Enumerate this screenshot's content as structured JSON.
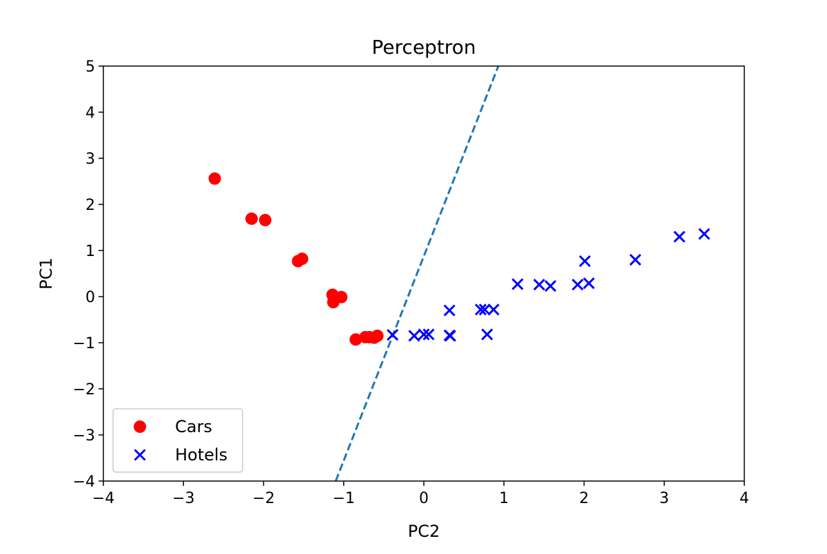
{
  "chart_data": {
    "type": "scatter",
    "title": "Perceptron",
    "xlabel": "PC2",
    "ylabel": "PC1",
    "xlim": [
      -4,
      4
    ],
    "ylim": [
      -4,
      5
    ],
    "xticks": [
      -4,
      -3,
      -2,
      -1,
      0,
      1,
      2,
      3,
      4
    ],
    "yticks": [
      -4,
      -3,
      -2,
      -1,
      0,
      1,
      2,
      3,
      4,
      5
    ],
    "grid": false,
    "legend_position": "lower-left",
    "series": [
      {
        "name": "Cars",
        "marker": "circle",
        "color": "#ff0000",
        "points": [
          [
            -2.61,
            2.56
          ],
          [
            -2.15,
            1.69
          ],
          [
            -1.98,
            1.66
          ],
          [
            -1.57,
            0.77
          ],
          [
            -1.52,
            0.82
          ],
          [
            -1.14,
            0.04
          ],
          [
            -1.13,
            -0.12
          ],
          [
            -1.03,
            -0.01
          ],
          [
            -0.85,
            -0.93
          ],
          [
            -0.73,
            -0.88
          ],
          [
            -0.68,
            -0.88
          ],
          [
            -0.62,
            -0.89
          ],
          [
            -0.58,
            -0.85
          ]
        ]
      },
      {
        "name": "Hotels",
        "marker": "x",
        "color": "#0000ff",
        "points": [
          [
            -0.39,
            -0.83
          ],
          [
            -0.12,
            -0.85
          ],
          [
            0.0,
            -0.82
          ],
          [
            0.06,
            -0.82
          ],
          [
            0.32,
            -0.3
          ],
          [
            0.32,
            -0.84
          ],
          [
            0.33,
            -0.85
          ],
          [
            0.71,
            -0.28
          ],
          [
            0.76,
            -0.28
          ],
          [
            0.87,
            -0.28
          ],
          [
            0.79,
            -0.82
          ],
          [
            1.17,
            0.27
          ],
          [
            1.44,
            0.26
          ],
          [
            1.58,
            0.23
          ],
          [
            1.92,
            0.26
          ],
          [
            2.01,
            0.77
          ],
          [
            2.06,
            0.29
          ],
          [
            2.64,
            0.8
          ],
          [
            3.19,
            1.3
          ],
          [
            3.5,
            1.36
          ]
        ]
      }
    ],
    "decision_boundary": {
      "style": "dashed",
      "color": "#1f77b4",
      "points": [
        [
          -1.1,
          -4.0
        ],
        [
          0.93,
          5.0
        ]
      ]
    }
  }
}
